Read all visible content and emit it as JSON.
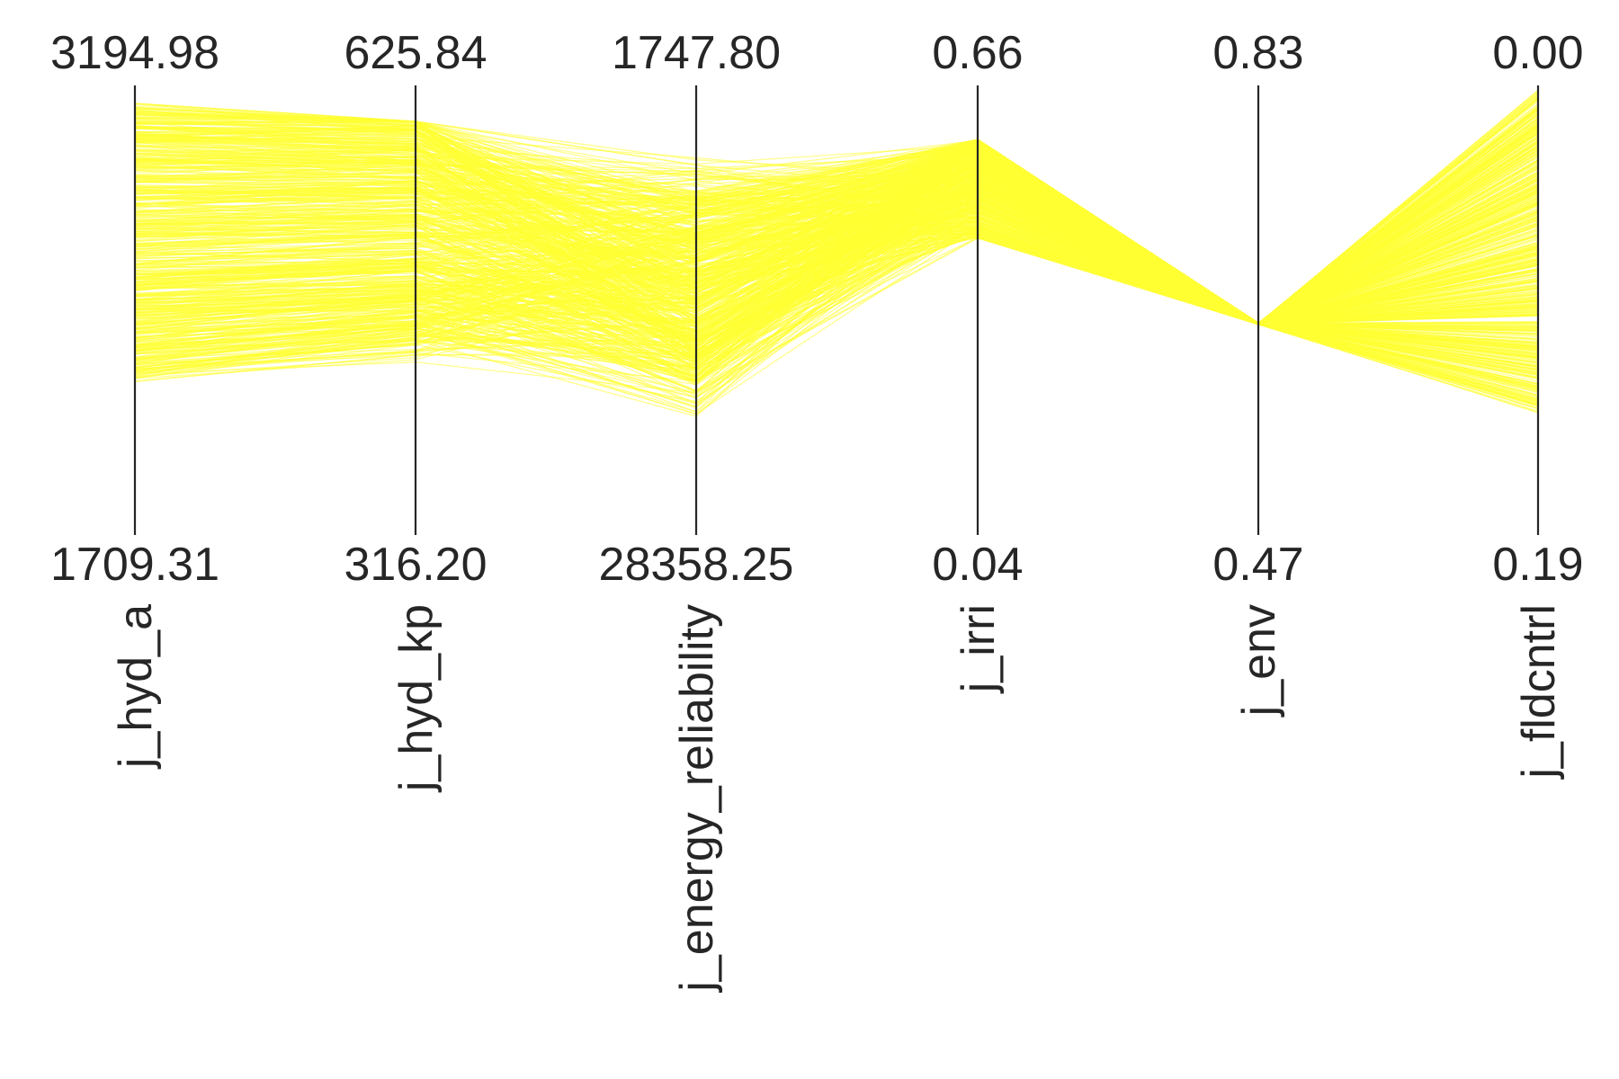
{
  "chart_data": {
    "type": "parallel_coordinates",
    "line_color": "#ffff33",
    "axes": [
      {
        "name": "j_hyd_a",
        "top": "3194.98",
        "bottom": "1709.31"
      },
      {
        "name": "j_hyd_kp",
        "top": "625.84",
        "bottom": "316.20"
      },
      {
        "name": "j_energy_reliability",
        "top": "1747.80",
        "bottom": "28358.25"
      },
      {
        "name": "j_irri",
        "top": "0.66",
        "bottom": "0.04"
      },
      {
        "name": "j_env",
        "top": "0.83",
        "bottom": "0.47"
      },
      {
        "name": "j_fldcntrl",
        "top": "0.00",
        "bottom": "0.19"
      }
    ],
    "series_note": "",
    "grid": false,
    "legend": "none"
  }
}
